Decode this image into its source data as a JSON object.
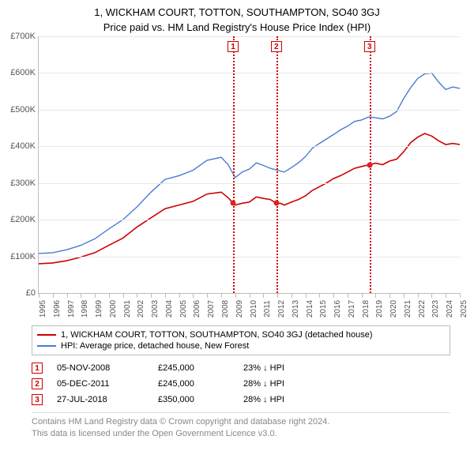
{
  "title": "1, WICKHAM COURT, TOTTON, SOUTHAMPTON, SO40 3GJ",
  "subtitle": "Price paid vs. HM Land Registry's House Price Index (HPI)",
  "chart": {
    "type": "line",
    "background_color": "#ffffff",
    "grid_color": "#e8e8e8",
    "axis_color": "#bdbdbd",
    "text_color": "#555555",
    "y": {
      "min": 0,
      "max": 700000,
      "tick_step": 100000,
      "tick_labels": [
        "£0",
        "£100K",
        "£200K",
        "£300K",
        "£400K",
        "£500K",
        "£600K",
        "£700K"
      ],
      "label_fontsize": 11
    },
    "x": {
      "min": 1995,
      "max": 2025,
      "ticks": [
        1995,
        1996,
        1997,
        1998,
        1999,
        2000,
        2001,
        2002,
        2003,
        2004,
        2005,
        2006,
        2007,
        2008,
        2009,
        2010,
        2011,
        2012,
        2013,
        2014,
        2015,
        2016,
        2017,
        2018,
        2019,
        2020,
        2021,
        2022,
        2023,
        2024,
        2025
      ],
      "label_fontsize": 10
    },
    "series": [
      {
        "type": "line",
        "color": "#cc0000",
        "width": 1.6,
        "legend": "1, WICKHAM COURT, TOTTON, SOUTHAMPTON, SO40 3GJ (detached house)",
        "points": [
          [
            1995,
            80000
          ],
          [
            1996,
            82000
          ],
          [
            1997,
            88000
          ],
          [
            1998,
            98000
          ],
          [
            1999,
            110000
          ],
          [
            2000,
            130000
          ],
          [
            2001,
            150000
          ],
          [
            2002,
            180000
          ],
          [
            2003,
            205000
          ],
          [
            2004,
            230000
          ],
          [
            2005,
            240000
          ],
          [
            2006,
            250000
          ],
          [
            2007,
            270000
          ],
          [
            2008,
            275000
          ],
          [
            2008.5,
            260000
          ],
          [
            2008.85,
            245000
          ],
          [
            2009,
            240000
          ],
          [
            2009.5,
            245000
          ],
          [
            2010,
            248000
          ],
          [
            2010.5,
            262000
          ],
          [
            2011,
            258000
          ],
          [
            2011.5,
            255000
          ],
          [
            2011.93,
            245000
          ],
          [
            2012.2,
            245000
          ],
          [
            2012.5,
            240000
          ],
          [
            2013,
            248000
          ],
          [
            2013.5,
            255000
          ],
          [
            2014,
            265000
          ],
          [
            2014.5,
            280000
          ],
          [
            2015,
            290000
          ],
          [
            2015.5,
            300000
          ],
          [
            2016,
            312000
          ],
          [
            2016.5,
            320000
          ],
          [
            2017,
            330000
          ],
          [
            2017.5,
            340000
          ],
          [
            2018,
            345000
          ],
          [
            2018.57,
            350000
          ],
          [
            2019,
            354000
          ],
          [
            2019.5,
            350000
          ],
          [
            2020,
            360000
          ],
          [
            2020.5,
            365000
          ],
          [
            2021,
            385000
          ],
          [
            2021.5,
            410000
          ],
          [
            2022,
            425000
          ],
          [
            2022.5,
            435000
          ],
          [
            2023,
            428000
          ],
          [
            2023.5,
            415000
          ],
          [
            2024,
            405000
          ],
          [
            2024.5,
            408000
          ],
          [
            2025,
            405000
          ]
        ]
      },
      {
        "type": "line",
        "color": "#4b7bd1",
        "width": 1.4,
        "legend": "HPI: Average price, detached house, New Forest",
        "points": [
          [
            1995,
            108000
          ],
          [
            1996,
            110000
          ],
          [
            1997,
            118000
          ],
          [
            1998,
            130000
          ],
          [
            1999,
            148000
          ],
          [
            2000,
            175000
          ],
          [
            2001,
            200000
          ],
          [
            2002,
            235000
          ],
          [
            2003,
            275000
          ],
          [
            2004,
            310000
          ],
          [
            2005,
            320000
          ],
          [
            2006,
            335000
          ],
          [
            2007,
            362000
          ],
          [
            2008,
            370000
          ],
          [
            2008.5,
            350000
          ],
          [
            2009,
            315000
          ],
          [
            2009.5,
            330000
          ],
          [
            2010,
            338000
          ],
          [
            2010.5,
            355000
          ],
          [
            2011,
            348000
          ],
          [
            2011.5,
            340000
          ],
          [
            2012,
            335000
          ],
          [
            2012.5,
            330000
          ],
          [
            2013,
            342000
          ],
          [
            2013.5,
            355000
          ],
          [
            2014,
            372000
          ],
          [
            2014.5,
            395000
          ],
          [
            2015,
            408000
          ],
          [
            2015.5,
            420000
          ],
          [
            2016,
            432000
          ],
          [
            2016.5,
            445000
          ],
          [
            2017,
            455000
          ],
          [
            2017.5,
            468000
          ],
          [
            2018,
            472000
          ],
          [
            2018.5,
            480000
          ],
          [
            2019,
            478000
          ],
          [
            2019.5,
            475000
          ],
          [
            2020,
            482000
          ],
          [
            2020.5,
            495000
          ],
          [
            2021,
            530000
          ],
          [
            2021.5,
            560000
          ],
          [
            2022,
            585000
          ],
          [
            2022.5,
            598000
          ],
          [
            2023,
            600000
          ],
          [
            2023.5,
            575000
          ],
          [
            2024,
            555000
          ],
          [
            2024.5,
            562000
          ],
          [
            2025,
            558000
          ]
        ]
      }
    ],
    "events": [
      {
        "num": "1",
        "year": 2008.85,
        "color": "#cc0000",
        "date": "05-NOV-2008",
        "price": "£245,000",
        "pct": "23% ↓ HPI",
        "price_val": 245000
      },
      {
        "num": "2",
        "year": 2011.93,
        "color": "#cc0000",
        "date": "05-DEC-2011",
        "price": "£245,000",
        "pct": "28% ↓ HPI",
        "price_val": 245000
      },
      {
        "num": "3",
        "year": 2018.57,
        "color": "#cc0000",
        "date": "27-JUL-2018",
        "price": "£350,000",
        "pct": "28% ↓ HPI",
        "price_val": 350000
      }
    ],
    "sale_dot_color": "#e02020"
  },
  "footer": {
    "line1": "Contains HM Land Registry data © Crown copyright and database right 2024.",
    "line2": "This data is licensed under the Open Government Licence v3.0."
  }
}
